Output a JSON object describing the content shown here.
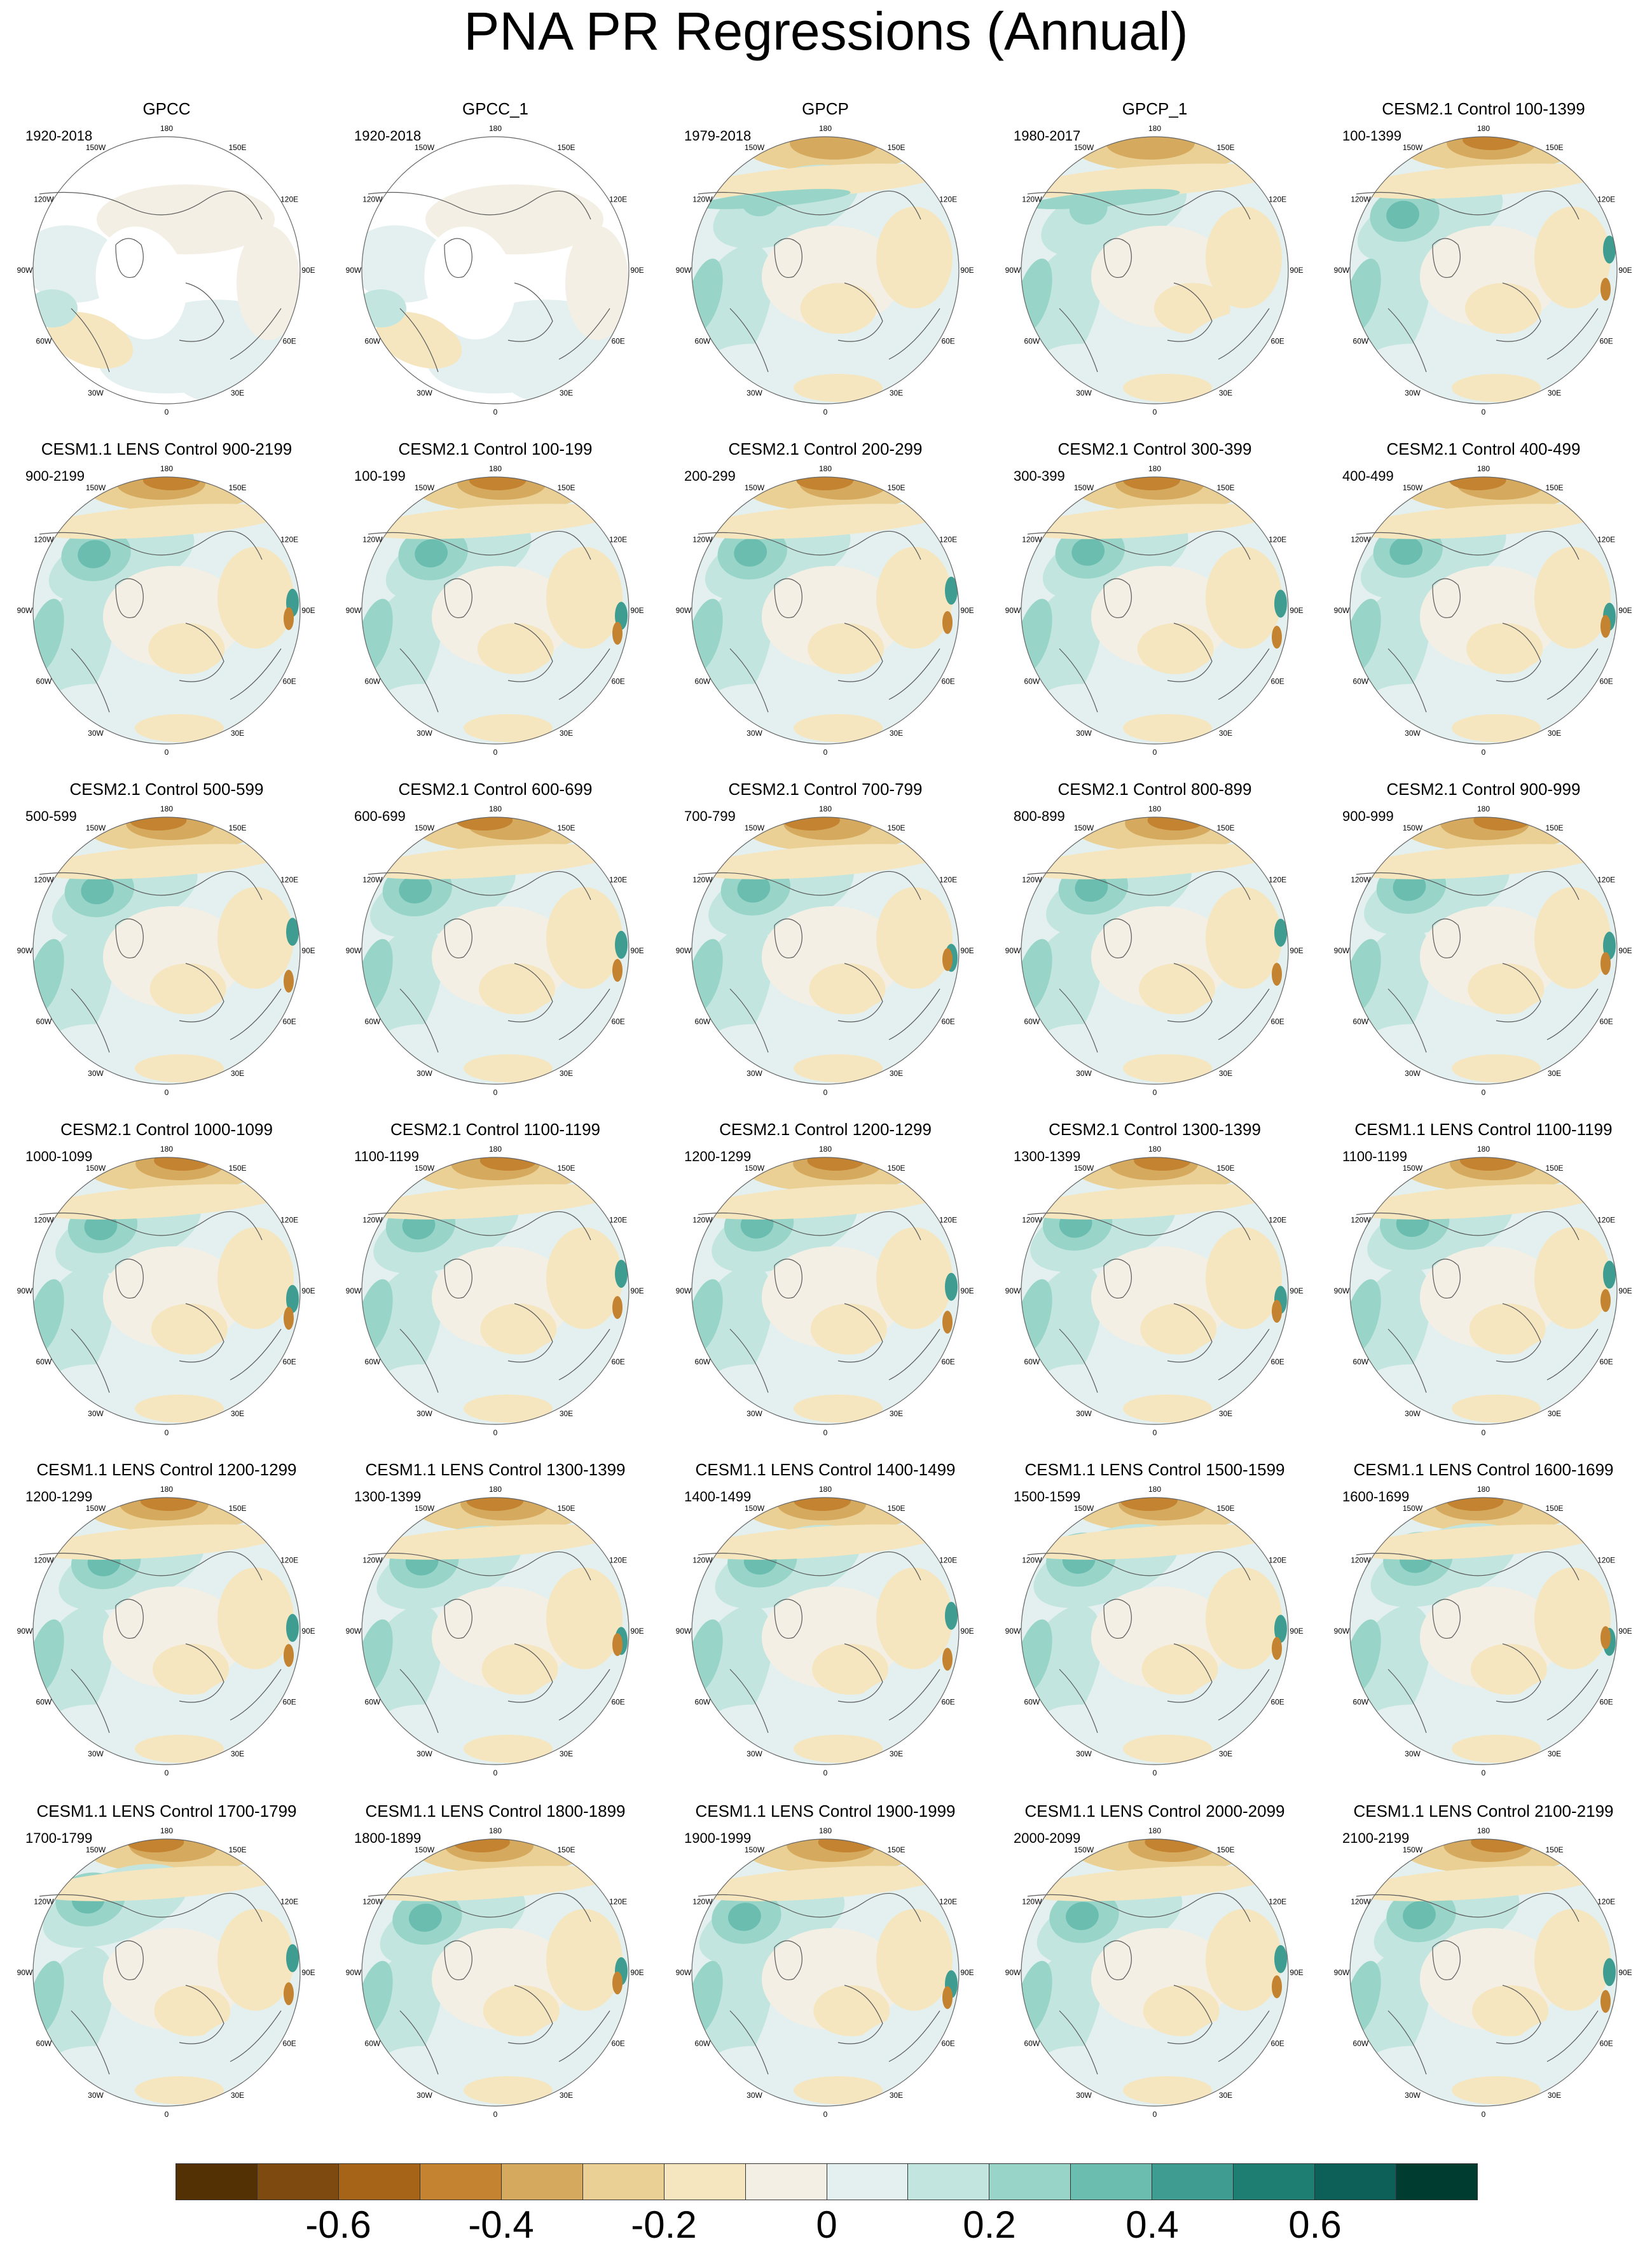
{
  "title": "PNA PR Regressions (Annual)",
  "lon_labels": [
    "180",
    "150E",
    "120E",
    "90E",
    "60E",
    "30E",
    "0",
    "30W",
    "60W",
    "90W",
    "120W",
    "150W"
  ],
  "panels": [
    {
      "title": "GPCC",
      "period": "1920-2018",
      "pattern": "gpcc"
    },
    {
      "title": "GPCC_1",
      "period": "1920-2018",
      "pattern": "gpcc"
    },
    {
      "title": "GPCP",
      "period": "1979-2018",
      "pattern": "gpcp"
    },
    {
      "title": "GPCP_1",
      "period": "1980-2017",
      "pattern": "gpcp"
    },
    {
      "title": "CESM2.1 Control 100-1399",
      "period": "100-1399",
      "pattern": "model"
    },
    {
      "title": "CESM1.1 LENS Control 900-2199",
      "period": "900-2199",
      "pattern": "model"
    },
    {
      "title": "CESM2.1 Control 100-199",
      "period": "100-199",
      "pattern": "model"
    },
    {
      "title": "CESM2.1 Control 200-299",
      "period": "200-299",
      "pattern": "model"
    },
    {
      "title": "CESM2.1 Control 300-399",
      "period": "300-399",
      "pattern": "model"
    },
    {
      "title": "CESM2.1 Control 400-499",
      "period": "400-499",
      "pattern": "model"
    },
    {
      "title": "CESM2.1 Control 500-599",
      "period": "500-599",
      "pattern": "model"
    },
    {
      "title": "CESM2.1 Control 600-699",
      "period": "600-699",
      "pattern": "model"
    },
    {
      "title": "CESM2.1 Control 700-799",
      "period": "700-799",
      "pattern": "model"
    },
    {
      "title": "CESM2.1 Control 800-899",
      "period": "800-899",
      "pattern": "model"
    },
    {
      "title": "CESM2.1 Control 900-999",
      "period": "900-999",
      "pattern": "model"
    },
    {
      "title": "CESM2.1 Control 1000-1099",
      "period": "1000-1099",
      "pattern": "model"
    },
    {
      "title": "CESM2.1 Control 1100-1199",
      "period": "1100-1199",
      "pattern": "model"
    },
    {
      "title": "CESM2.1 Control 1200-1299",
      "period": "1200-1299",
      "pattern": "model"
    },
    {
      "title": "CESM2.1 Control 1300-1399",
      "period": "1300-1399",
      "pattern": "model"
    },
    {
      "title": "CESM1.1 LENS Control 1100-1199",
      "period": "1100-1199",
      "pattern": "model"
    },
    {
      "title": "CESM1.1 LENS Control 1200-1299",
      "period": "1200-1299",
      "pattern": "model"
    },
    {
      "title": "CESM1.1 LENS Control 1300-1399",
      "period": "1300-1399",
      "pattern": "model"
    },
    {
      "title": "CESM1.1 LENS Control 1400-1499",
      "period": "1400-1499",
      "pattern": "model"
    },
    {
      "title": "CESM1.1 LENS Control 1500-1599",
      "period": "1500-1599",
      "pattern": "model"
    },
    {
      "title": "CESM1.1 LENS Control 1600-1699",
      "period": "1600-1699",
      "pattern": "model"
    },
    {
      "title": "CESM1.1 LENS Control 1700-1799",
      "period": "1700-1799",
      "pattern": "model"
    },
    {
      "title": "CESM1.1 LENS Control 1800-1899",
      "period": "1800-1899",
      "pattern": "model"
    },
    {
      "title": "CESM1.1 LENS Control 1900-1999",
      "period": "1900-1999",
      "pattern": "model"
    },
    {
      "title": "CESM1.1 LENS Control 2000-2099",
      "period": "2000-2099",
      "pattern": "model"
    },
    {
      "title": "CESM1.1 LENS Control 2100-2199",
      "period": "2100-2199",
      "pattern": "model"
    }
  ],
  "colorbar": {
    "colors": [
      "#543005",
      "#7f4a0f",
      "#a56418",
      "#c38330",
      "#d6aa5e",
      "#ead095",
      "#f5e6c0",
      "#f4efe4",
      "#e3f0ef",
      "#c2e6df",
      "#98d5c8",
      "#6abdaf",
      "#3e9d90",
      "#1e7e72",
      "#0d6057",
      "#003c30"
    ],
    "levels": [
      -0.7,
      -0.6,
      -0.5,
      -0.4,
      -0.3,
      -0.2,
      -0.1,
      0,
      0.1,
      0.2,
      0.3,
      0.4,
      0.5,
      0.6,
      0.7
    ],
    "labels": [
      "-0.6",
      "-0.4",
      "-0.2",
      "0",
      "0.2",
      "0.4",
      "0.6"
    ]
  }
}
